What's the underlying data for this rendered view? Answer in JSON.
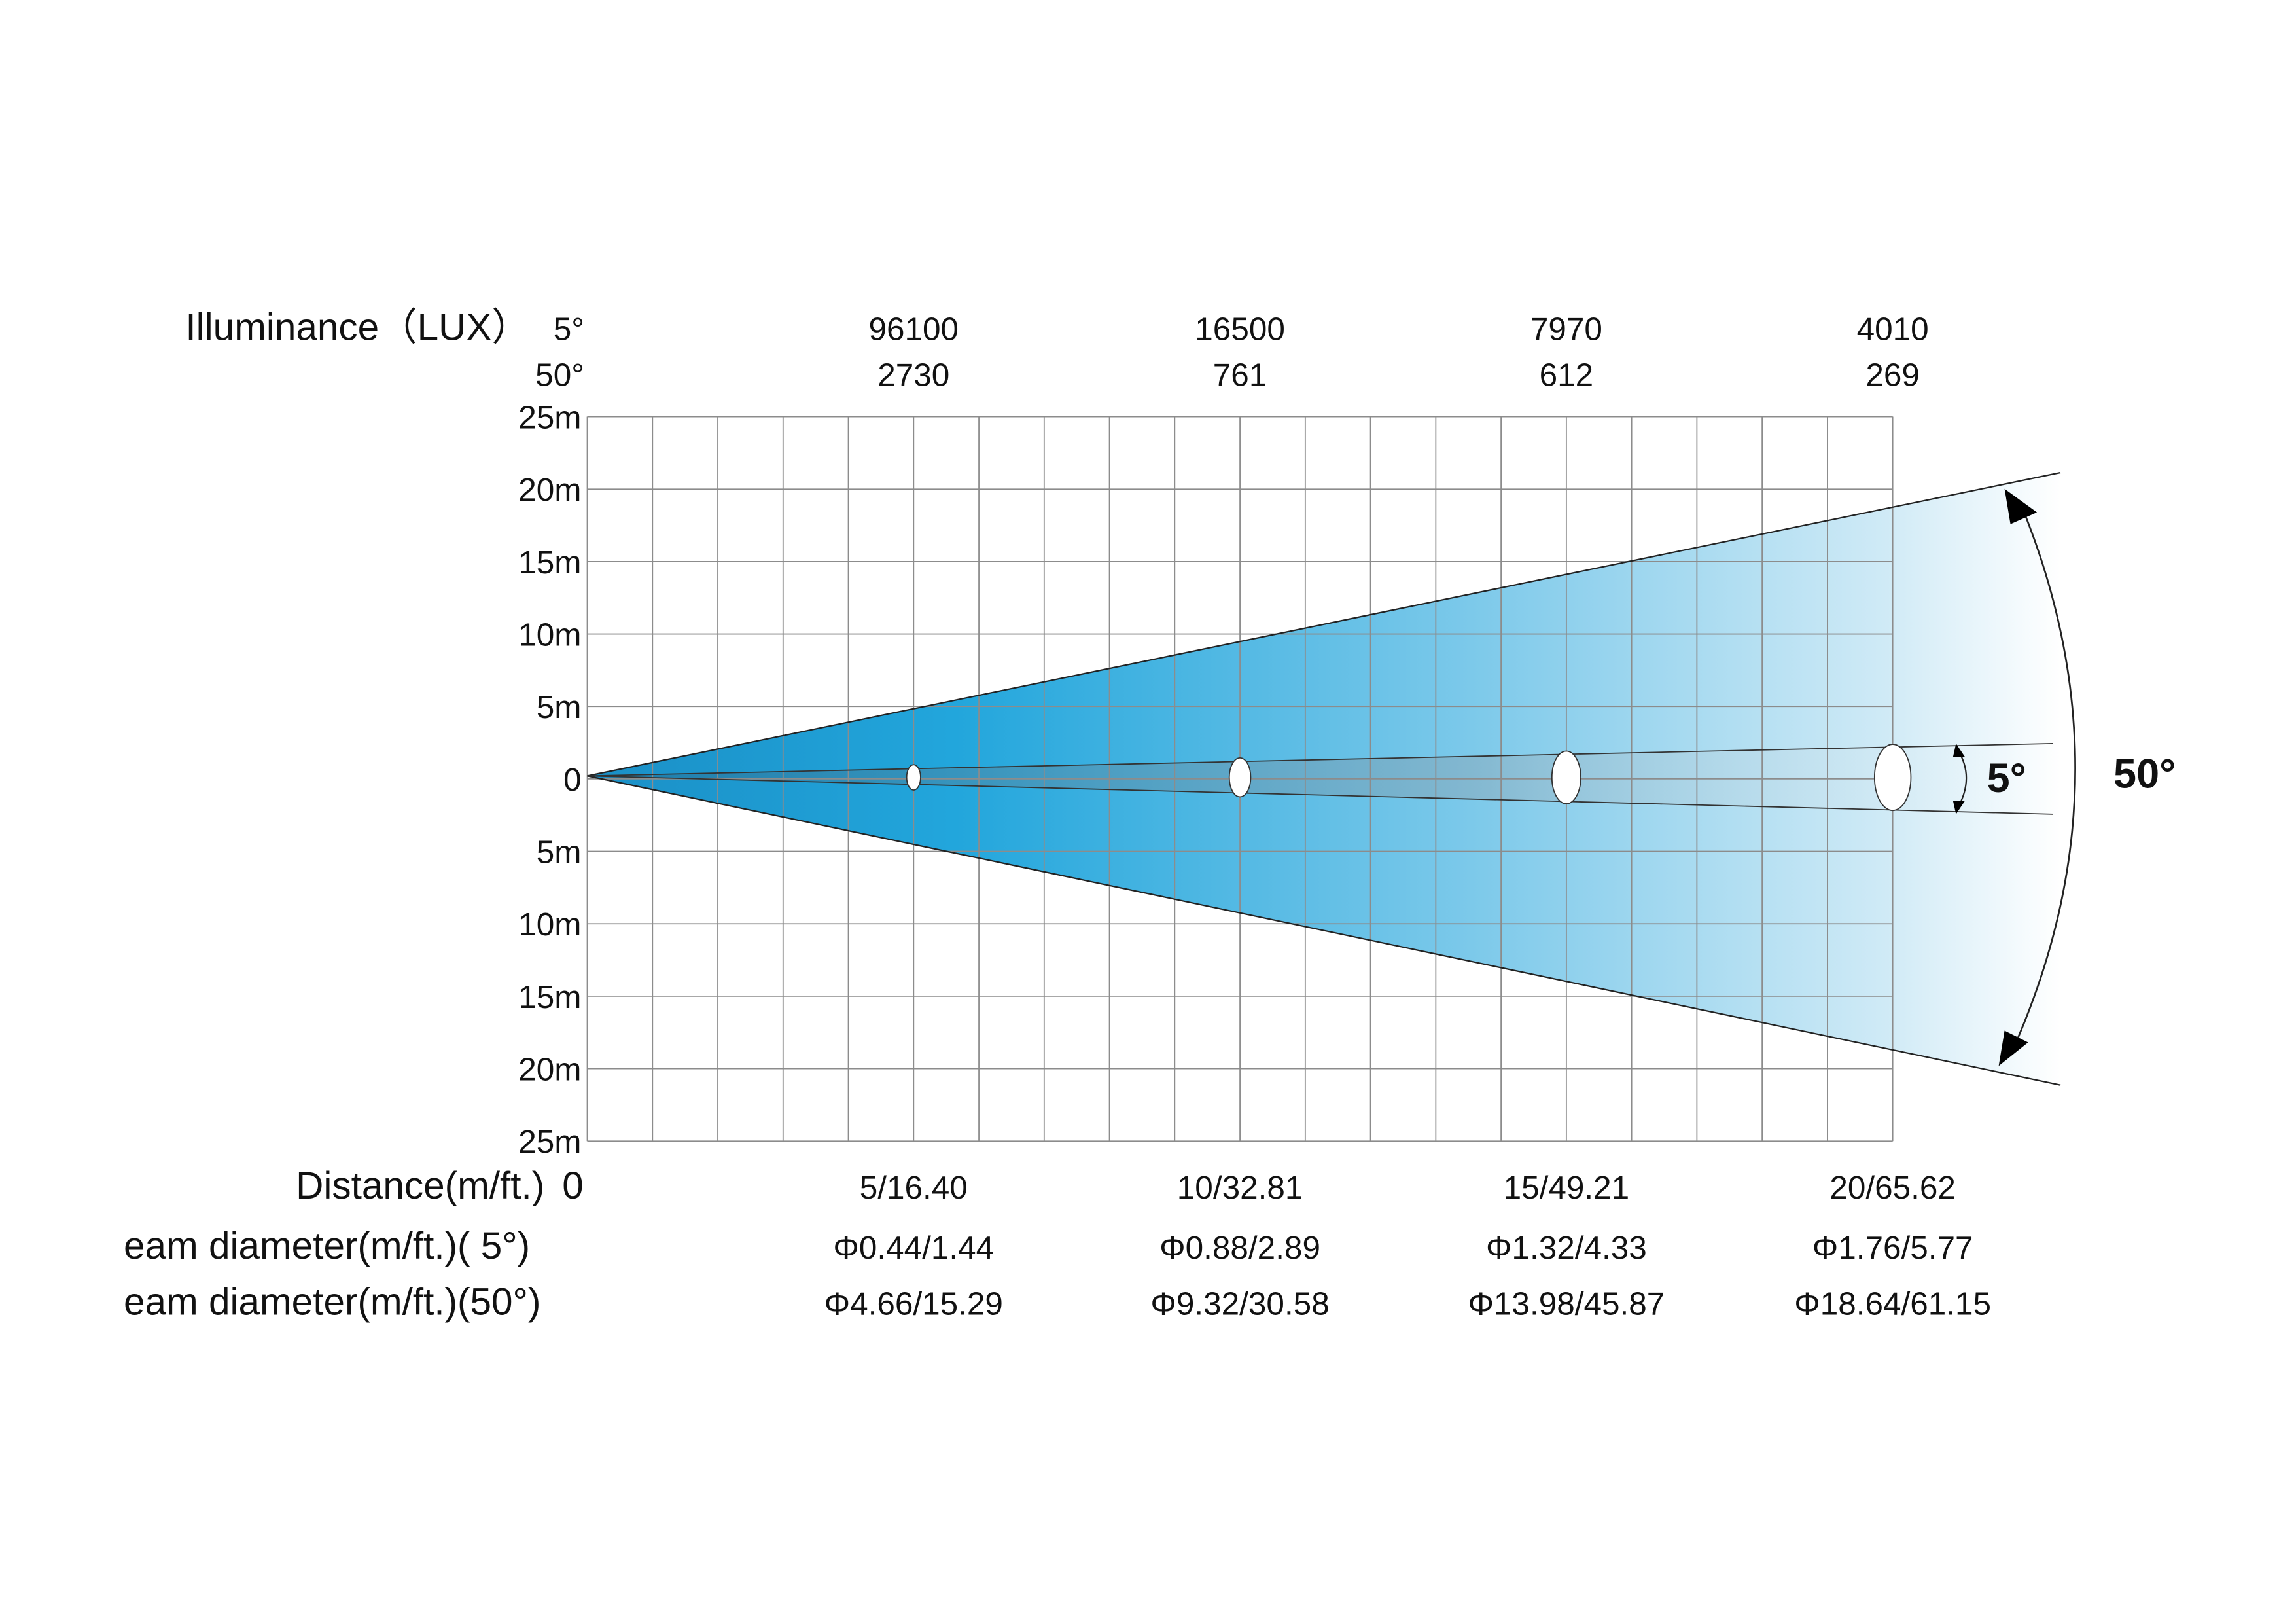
{
  "chart_data": {
    "type": "beam-angle-diagram",
    "illuminance_label": "Illuminance（LUX）",
    "angle_labels": [
      "5°",
      "50°"
    ],
    "distance_label": "Distance(m/ft.)",
    "distance_zero": "0",
    "diameter_label_5": "eam diameter(m/ft.)( 5°)",
    "diameter_label_50": "eam diameter(m/ft.)(50°)",
    "y_ticks": [
      "25m",
      "20m",
      "15m",
      "10m",
      "5m",
      "0",
      "5m",
      "10m",
      "15m",
      "20m",
      "25m"
    ],
    "xlim": [
      0,
      20
    ],
    "ylim": [
      -25,
      25
    ],
    "points": [
      {
        "distance_m": 5,
        "distance": "5/16.40",
        "lux_5": "96100",
        "lux_50": "2730",
        "dia_5": "Φ0.44/1.44",
        "dia_50": "Φ4.66/15.29",
        "dia_5_m": 0.44,
        "dia_50_m": 4.66
      },
      {
        "distance_m": 10,
        "distance": "10/32.81",
        "lux_5": "16500",
        "lux_50": "761",
        "dia_5": "Φ0.88/2.89",
        "dia_50": "Φ9.32/30.58",
        "dia_5_m": 0.88,
        "dia_50_m": 9.32
      },
      {
        "distance_m": 15,
        "distance": "15/49.21",
        "lux_5": "7970",
        "lux_50": "612",
        "dia_5": "Φ1.32/4.33",
        "dia_50": "Φ13.98/45.87",
        "dia_5_m": 1.32,
        "dia_50_m": 13.98
      },
      {
        "distance_m": 20,
        "distance": "20/65.62",
        "lux_5": "4010",
        "lux_50": "269",
        "dia_5": "Φ1.76/5.77",
        "dia_50": "Φ18.64/61.15",
        "dia_5_m": 1.76,
        "dia_50_m": 18.64
      }
    ],
    "beam_angles": {
      "narrow": "5°",
      "wide": "50°"
    },
    "colors": {
      "beam": "#1a9fd6",
      "grid": "#8c8c8c",
      "narrow": "#7a8a96"
    }
  }
}
